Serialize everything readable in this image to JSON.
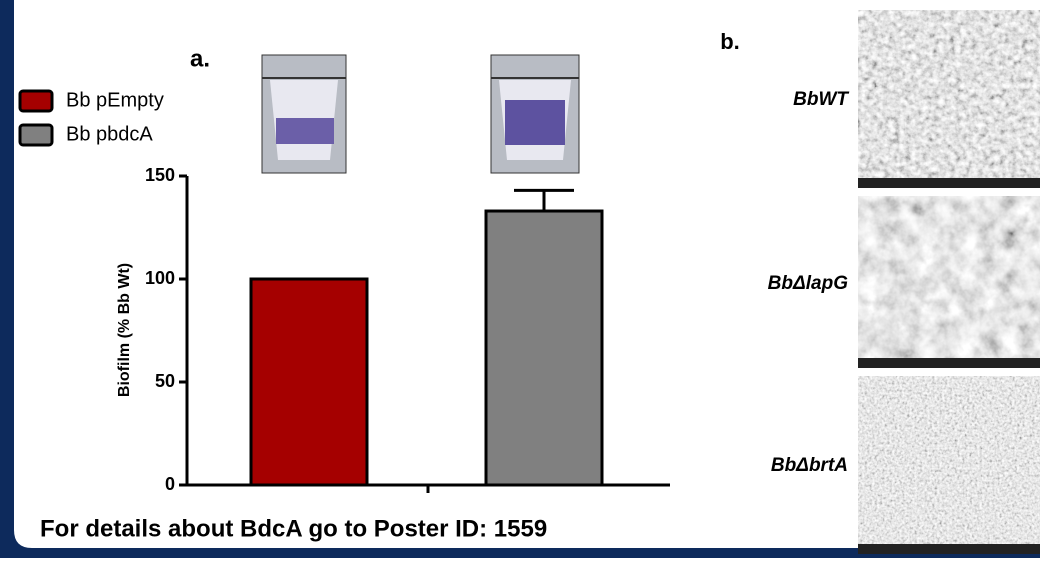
{
  "chart_data": {
    "type": "bar",
    "panel_label": "a.",
    "ylabel": "Biofilm (% Bb Wt)",
    "categories": [
      null,
      null
    ],
    "series": [
      {
        "name": "Bb pEmpty",
        "color": "#a50000",
        "values": [
          100,
          null
        ]
      },
      {
        "name": "Bb pbdcA",
        "color": "#808080",
        "values": [
          null,
          133
        ],
        "errors": [
          null,
          10
        ]
      }
    ],
    "ylim": [
      0,
      150
    ],
    "yticks": [
      0,
      50,
      100,
      150
    ]
  },
  "panel_b": {
    "label": "b.",
    "images": [
      "BbWT",
      "BbΔlapG",
      "BbΔbrtA"
    ]
  },
  "footer": "For details about BdcA go to Poster ID: 1559"
}
